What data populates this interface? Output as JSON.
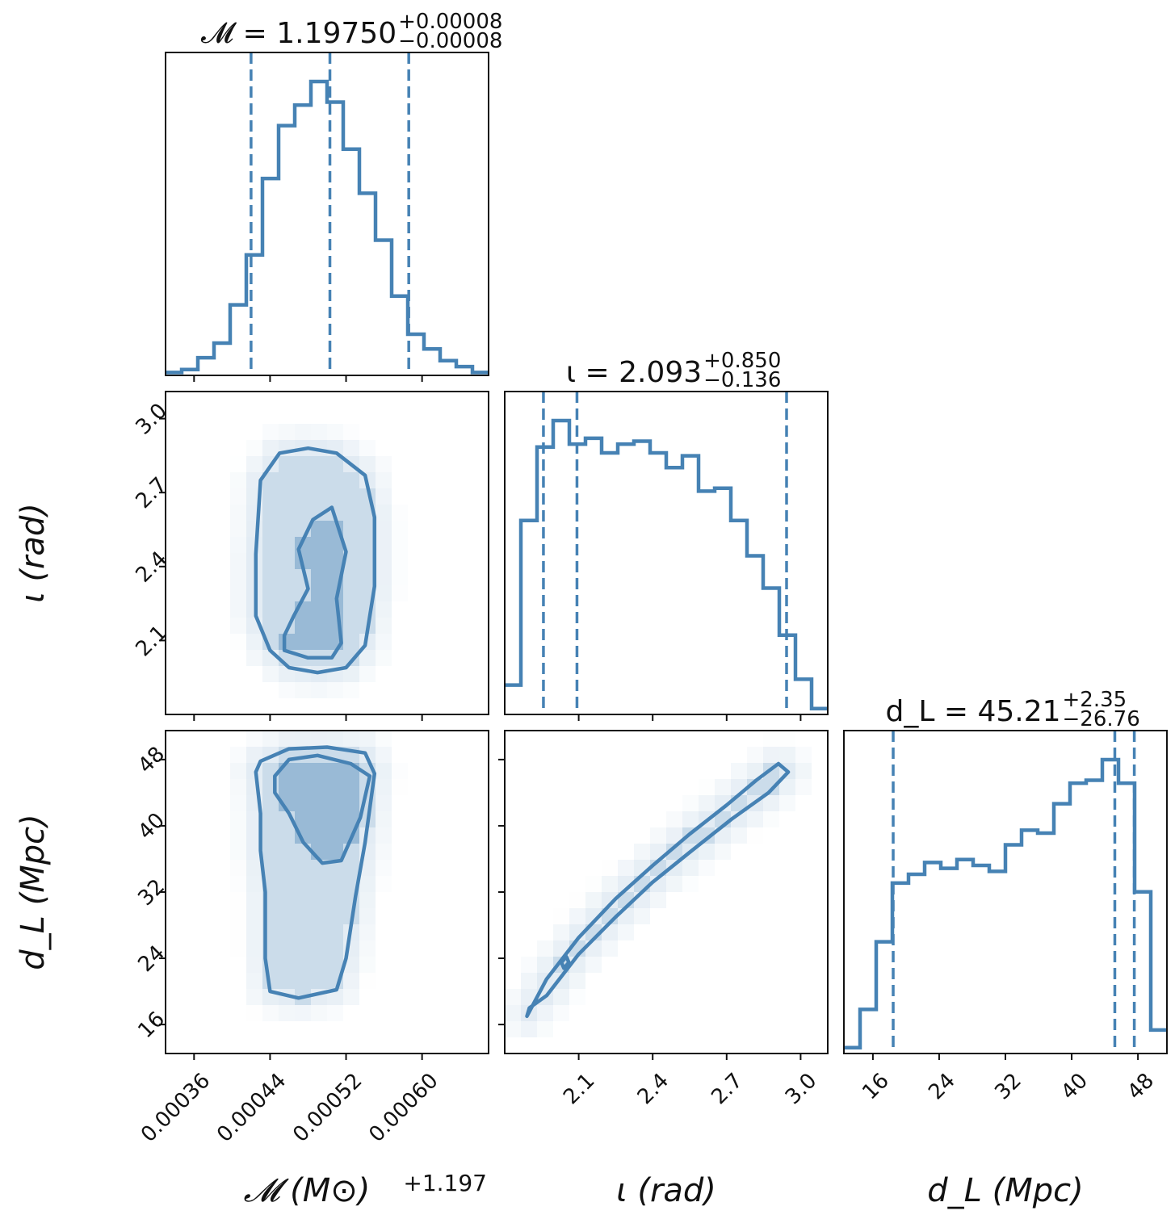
{
  "chart_data": {
    "type": "corner",
    "color": "#4682b4",
    "parameters": [
      {
        "key": "chirp_mass",
        "axis_label": "𝓜 (M⊙)",
        "offset_label": "+1.197",
        "range": [
          0.00033,
          0.00067
        ],
        "ticks": [
          0.00036,
          0.00044,
          0.00052,
          0.0006
        ],
        "tick_labels": [
          "0.00036",
          "0.00044",
          "0.00052",
          "0.00060"
        ],
        "title": "𝓜 = 1.19750",
        "title_plus": "+0.00008",
        "title_minus": "−0.00008",
        "quantiles": [
          0.00042,
          0.000503,
          0.000586
        ],
        "histogram": [
          0.01,
          0.02,
          0.06,
          0.11,
          0.24,
          0.41,
          0.67,
          0.85,
          0.92,
          1.0,
          0.93,
          0.77,
          0.62,
          0.46,
          0.27,
          0.14,
          0.09,
          0.05,
          0.03,
          0.01
        ]
      },
      {
        "key": "inclination",
        "axis_label": "ι (rad)",
        "range": [
          1.8,
          3.11
        ],
        "ticks": [
          2.1,
          2.4,
          2.7,
          3.0
        ],
        "tick_labels": [
          "2.1",
          "2.4",
          "2.7",
          "3.0"
        ],
        "title": "ι = 2.093",
        "title_plus": "+0.850",
        "title_minus": "−0.136",
        "quantiles": [
          1.957,
          2.093,
          2.943
        ],
        "histogram": [
          0.1,
          0.66,
          0.91,
          1.0,
          0.92,
          0.94,
          0.89,
          0.92,
          0.93,
          0.89,
          0.84,
          0.88,
          0.76,
          0.77,
          0.66,
          0.54,
          0.43,
          0.27,
          0.12,
          0.02
        ]
      },
      {
        "key": "luminosity_distance",
        "axis_label": "d_L (Mpc)",
        "range": [
          12.5,
          51.5
        ],
        "ticks": [
          16,
          24,
          32,
          40,
          48
        ],
        "tick_labels": [
          "16",
          "24",
          "32",
          "40",
          "48"
        ],
        "title": "d_L = 45.21",
        "title_plus": "+2.35",
        "title_minus": "−26.76",
        "quantiles": [
          18.45,
          45.21,
          47.56
        ],
        "histogram": [
          0.02,
          0.15,
          0.38,
          0.58,
          0.61,
          0.65,
          0.63,
          0.66,
          0.64,
          0.62,
          0.71,
          0.76,
          0.75,
          0.85,
          0.92,
          0.93,
          1.0,
          0.92,
          0.55,
          0.08
        ]
      }
    ],
    "pairs": [
      {
        "x": "chirp_mass",
        "y": "inclination",
        "contours": [
          [
            [
              0.00044,
              2.06
            ],
            [
              0.00046,
              1.99
            ],
            [
              0.00049,
              1.97
            ],
            [
              0.00052,
              1.99
            ],
            [
              0.00054,
              2.08
            ],
            [
              0.00055,
              2.32
            ],
            [
              0.00055,
              2.6
            ],
            [
              0.00054,
              2.77
            ],
            [
              0.00051,
              2.86
            ],
            [
              0.00048,
              2.88
            ],
            [
              0.00045,
              2.86
            ],
            [
              0.00043,
              2.75
            ],
            [
              0.000425,
              2.45
            ],
            [
              0.000425,
              2.2
            ]
          ],
          [
            [
              0.000455,
              2.06
            ],
            [
              0.00048,
              2.03
            ],
            [
              0.000505,
              2.03
            ],
            [
              0.000515,
              2.09
            ],
            [
              0.00051,
              2.27
            ],
            [
              0.00052,
              2.46
            ],
            [
              0.000505,
              2.64
            ],
            [
              0.000485,
              2.59
            ],
            [
              0.00047,
              2.47
            ],
            [
              0.00048,
              2.31
            ],
            [
              0.000465,
              2.2
            ],
            [
              0.000455,
              2.12
            ]
          ]
        ]
      },
      {
        "x": "chirp_mass",
        "y": "luminosity_distance",
        "contours": [
          [
            [
              0.00043,
              47.8
            ],
            [
              0.00046,
              49.3
            ],
            [
              0.0005,
              49.5
            ],
            [
              0.00054,
              48.8
            ],
            [
              0.00055,
              46.3
            ],
            [
              0.00054,
              38.0
            ],
            [
              0.00053,
              31.5
            ],
            [
              0.00052,
              24.0
            ],
            [
              0.00051,
              20.2
            ],
            [
              0.00047,
              19.2
            ],
            [
              0.00044,
              20.0
            ],
            [
              0.000435,
              24.0
            ],
            [
              0.000435,
              32.0
            ],
            [
              0.00043,
              37.0
            ],
            [
              0.00043,
              41.5
            ],
            [
              0.000425,
              46.5
            ]
          ],
          [
            [
              0.000445,
              46.0
            ],
            [
              0.00046,
              48.0
            ],
            [
              0.00049,
              48.5
            ],
            [
              0.000525,
              47.5
            ],
            [
              0.000545,
              46.0
            ],
            [
              0.000535,
              41.0
            ],
            [
              0.000515,
              35.8
            ],
            [
              0.000495,
              35.5
            ],
            [
              0.000475,
              38.0
            ],
            [
              0.00046,
              41.5
            ],
            [
              0.000445,
              44.0
            ]
          ]
        ]
      },
      {
        "x": "inclination",
        "y": "luminosity_distance",
        "contours": [
          [
            [
              1.89,
              17.0
            ],
            [
              1.97,
              21.5
            ],
            [
              2.1,
              26.5
            ],
            [
              2.25,
              31.2
            ],
            [
              2.4,
              35.2
            ],
            [
              2.55,
              39.0
            ],
            [
              2.7,
              42.5
            ],
            [
              2.82,
              45.5
            ],
            [
              2.91,
              47.5
            ],
            [
              2.95,
              46.5
            ],
            [
              2.87,
              44.0
            ],
            [
              2.72,
              40.8
            ],
            [
              2.55,
              36.8
            ],
            [
              2.4,
              33.2
            ],
            [
              2.25,
              29.0
            ],
            [
              2.1,
              24.5
            ],
            [
              1.97,
              19.5
            ],
            [
              1.9,
              18.0
            ]
          ],
          [
            [
              2.04,
              22.8
            ],
            [
              2.06,
              23.5
            ],
            [
              2.05,
              24.2
            ],
            [
              2.03,
              23.5
            ]
          ]
        ]
      }
    ]
  }
}
